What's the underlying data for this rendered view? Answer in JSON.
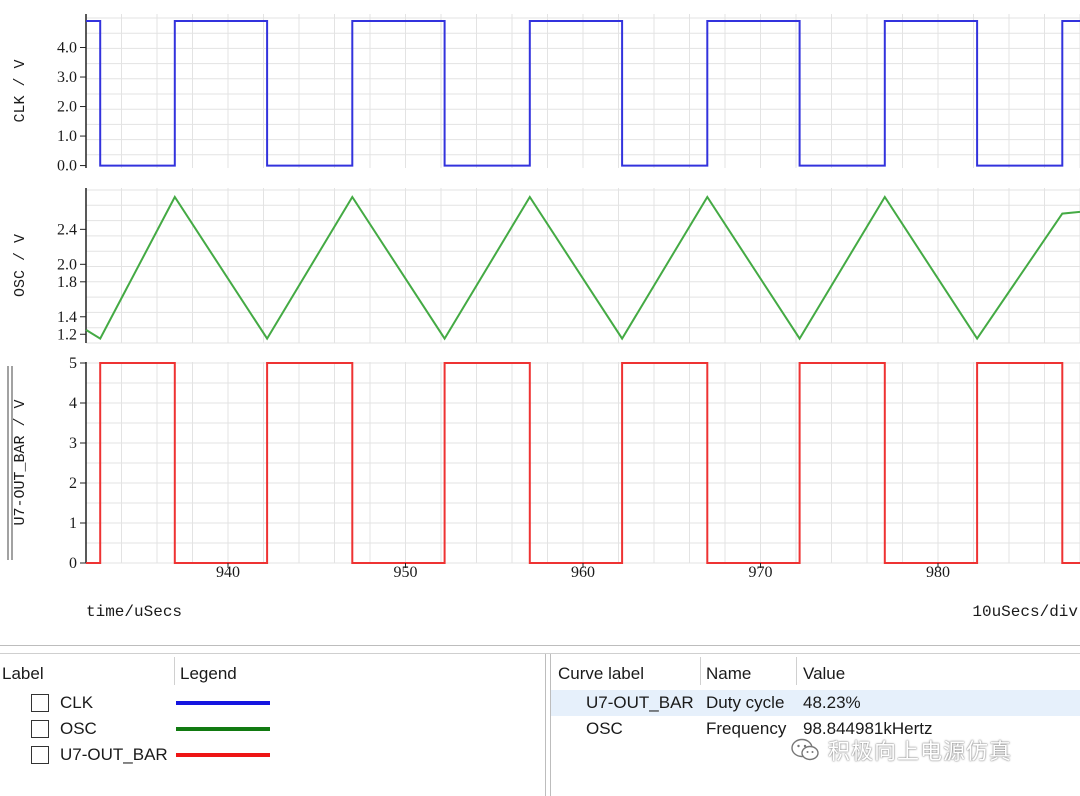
{
  "plot": {
    "time_label": "time/uSecs",
    "div_label": "10uSecs/div"
  },
  "chart_data": [
    {
      "type": "line",
      "ylabel": "CLK / V",
      "color": "#3333dd",
      "ylim": [
        -0.15,
        5.0
      ],
      "yticks": [
        "0.0",
        "1.0",
        "2.0",
        "3.0",
        "4.0"
      ],
      "yticks_values": [
        0,
        1,
        2,
        3,
        4
      ],
      "x": [
        932,
        932.8,
        932.8,
        937.0,
        937.0,
        942.2,
        942.2,
        947.0,
        947.0,
        952.2,
        952.2,
        957.0,
        957.0,
        962.2,
        962.2,
        967.0,
        967.0,
        972.2,
        972.2,
        977.0,
        977.0,
        982.2,
        982.2,
        987.0,
        987.0,
        988
      ],
      "y": [
        4.9,
        4.9,
        0,
        0,
        4.9,
        4.9,
        0,
        0,
        4.9,
        4.9,
        0,
        0,
        4.9,
        4.9,
        0,
        0,
        4.9,
        4.9,
        0,
        0,
        4.9,
        4.9,
        0,
        0,
        4.9,
        4.9
      ]
    },
    {
      "type": "line",
      "ylabel": "OSC / V",
      "color": "#44aa44",
      "ylim": [
        1.1,
        2.85
      ],
      "yticks": [
        "1.2",
        "1.4",
        "1.8",
        "2.0",
        "2.4"
      ],
      "yticks_values": [
        1.2,
        1.4,
        1.8,
        2.0,
        2.4
      ],
      "x": [
        932,
        932.8,
        937.0,
        942.2,
        947.0,
        952.2,
        957.0,
        962.2,
        967.0,
        972.2,
        977.0,
        982.2,
        987.0,
        988
      ],
      "y": [
        1.25,
        1.15,
        2.77,
        1.15,
        2.77,
        1.15,
        2.77,
        1.15,
        2.77,
        1.15,
        2.77,
        1.15,
        2.58,
        2.6
      ]
    },
    {
      "type": "line",
      "ylabel": "U7-OUT_BAR / V",
      "color": "#ee3333",
      "ylim": [
        0,
        5
      ],
      "yticks": [
        "0",
        "1",
        "2",
        "3",
        "4",
        "5"
      ],
      "yticks_values": [
        0,
        1,
        2,
        3,
        4,
        5
      ],
      "xticks": [
        "940",
        "950",
        "960",
        "970",
        "980"
      ],
      "xticks_values": [
        940,
        950,
        960,
        970,
        980
      ],
      "xlim": [
        932,
        988
      ],
      "x": [
        932,
        932.8,
        932.8,
        937.0,
        937.0,
        942.2,
        942.2,
        947.0,
        947.0,
        952.2,
        952.2,
        957.0,
        957.0,
        962.2,
        962.2,
        967.0,
        967.0,
        972.2,
        972.2,
        977.0,
        977.0,
        982.2,
        982.2,
        987.0,
        987.0,
        988
      ],
      "y": [
        0,
        0,
        5,
        5,
        0,
        0,
        5,
        5,
        0,
        0,
        5,
        5,
        0,
        0,
        5,
        5,
        0,
        0,
        5,
        5,
        0,
        0,
        5,
        5,
        0,
        0
      ]
    }
  ],
  "legend_panel": {
    "header_label": "Label",
    "header_legend": "Legend",
    "rows": [
      {
        "label": "CLK",
        "color": "#1515e0"
      },
      {
        "label": "OSC",
        "color": "#117a11"
      },
      {
        "label": "U7-OUT_BAR",
        "color": "#ee1515"
      }
    ]
  },
  "measure_panel": {
    "header_curve": "Curve label",
    "header_name": "Name",
    "header_value": "Value",
    "rows": [
      {
        "curve": "U7-OUT_BAR",
        "name": "Duty cycle",
        "value": "48.23%"
      },
      {
        "curve": "OSC",
        "name": "Frequency",
        "value": "98.844981kHertz"
      }
    ]
  },
  "watermark": {
    "icon": "wechat-icon",
    "text": "积极向上电源仿真"
  }
}
